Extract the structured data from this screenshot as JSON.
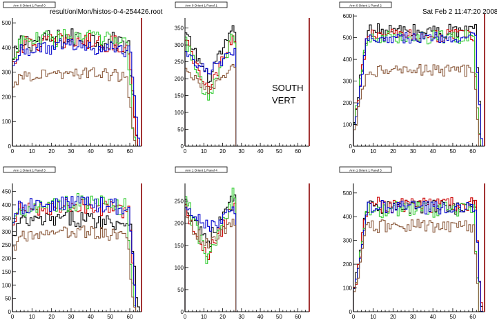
{
  "header": {
    "file_path": "result/onlMon/histos-0-4-254426.root",
    "timestamp": "Sat Feb  2 11:47:20 2008"
  },
  "annotation": {
    "line1": "SOUTH",
    "line2": "VERT"
  },
  "colors": {
    "black": "#000000",
    "red": "#cc0000",
    "green": "#33cc33",
    "blue": "#0000cc",
    "brown": "#8b5a3c",
    "axis_right": "#8b0000"
  },
  "chart_data": [
    {
      "type": "histogram",
      "title": "Arm 0 Orient 1 Panel 0",
      "xlim": [
        0,
        66
      ],
      "ylim": [
        0,
        520
      ],
      "xticks": [
        0,
        10,
        20,
        30,
        40,
        50,
        60
      ],
      "yticks": [
        0,
        100,
        200,
        300,
        400,
        500
      ],
      "series": [
        {
          "color": "black",
          "profile": "plateau",
          "level": 440,
          "noise": 40,
          "end": 63
        },
        {
          "color": "red",
          "profile": "plateau",
          "level": 430,
          "noise": 35,
          "end": 63
        },
        {
          "color": "green",
          "profile": "plateau",
          "level": 445,
          "noise": 40,
          "end": 62
        },
        {
          "color": "blue",
          "profile": "plateau",
          "level": 410,
          "noise": 30,
          "end": 64
        },
        {
          "color": "brown",
          "profile": "plateau",
          "level": 300,
          "noise": 25,
          "end": 62
        }
      ]
    },
    {
      "type": "histogram",
      "title": "Arm 0 Orient 1 Panel 1",
      "xlim": [
        0,
        66
      ],
      "ylim": [
        0,
        380
      ],
      "xticks": [
        0,
        10,
        20,
        30,
        40,
        50,
        60
      ],
      "yticks": [
        0,
        50,
        100,
        150,
        200,
        250,
        300,
        350
      ],
      "series": [
        {
          "color": "black",
          "profile": "vshape",
          "level": 340,
          "dip": 200,
          "noise": 20,
          "end": 26
        },
        {
          "color": "red",
          "profile": "vshape",
          "level": 320,
          "dip": 160,
          "noise": 20,
          "end": 26
        },
        {
          "color": "green",
          "profile": "vshape",
          "level": 330,
          "dip": 130,
          "noise": 25,
          "end": 26
        },
        {
          "color": "blue",
          "profile": "vshape",
          "level": 280,
          "dip": 220,
          "noise": 15,
          "end": 26
        },
        {
          "color": "brown",
          "profile": "vshape",
          "level": 230,
          "dip": 170,
          "noise": 15,
          "end": 26
        }
      ]
    },
    {
      "type": "histogram",
      "title": "Arm 0 Orient 1 Panel 2",
      "xlim": [
        0,
        66
      ],
      "ylim": [
        0,
        610
      ],
      "xticks": [
        0,
        10,
        20,
        30,
        40,
        50,
        60
      ],
      "yticks": [
        0,
        100,
        200,
        300,
        400,
        500,
        600
      ],
      "series": [
        {
          "color": "black",
          "profile": "rise",
          "level": 530,
          "noise": 35,
          "end": 64
        },
        {
          "color": "red",
          "profile": "rise",
          "level": 510,
          "noise": 30,
          "end": 63
        },
        {
          "color": "green",
          "profile": "rise",
          "level": 505,
          "noise": 35,
          "end": 63
        },
        {
          "color": "blue",
          "profile": "rise",
          "level": 500,
          "noise": 25,
          "end": 64
        },
        {
          "color": "brown",
          "profile": "rise",
          "level": 350,
          "noise": 30,
          "end": 63
        }
      ]
    },
    {
      "type": "histogram",
      "title": "Arm 1 Orient 1 Panel 3",
      "xlim": [
        0,
        66
      ],
      "ylim": [
        0,
        480
      ],
      "xticks": [
        0,
        10,
        20,
        30,
        40,
        50,
        60
      ],
      "yticks": [
        0,
        50,
        100,
        150,
        200,
        250,
        300,
        350,
        400,
        450
      ],
      "series": [
        {
          "color": "black",
          "profile": "plateau",
          "level": 350,
          "noise": 30,
          "end": 64
        },
        {
          "color": "red",
          "profile": "plateau",
          "level": 400,
          "noise": 30,
          "end": 63
        },
        {
          "color": "green",
          "profile": "plateau",
          "level": 410,
          "noise": 35,
          "end": 62
        },
        {
          "color": "blue",
          "profile": "plateau",
          "level": 410,
          "noise": 30,
          "end": 63
        },
        {
          "color": "brown",
          "profile": "plateau",
          "level": 300,
          "noise": 25,
          "end": 62
        }
      ]
    },
    {
      "type": "histogram",
      "title": "Arm 1 Orient 1 Panel 4",
      "xlim": [
        0,
        66
      ],
      "ylim": [
        0,
        290
      ],
      "xticks": [
        0,
        10,
        20,
        30,
        40,
        50,
        60
      ],
      "yticks": [
        0,
        50,
        100,
        150,
        200,
        250
      ],
      "series": [
        {
          "color": "black",
          "profile": "vshape",
          "level": 250,
          "dip": 160,
          "noise": 20,
          "end": 26
        },
        {
          "color": "red",
          "profile": "vshape",
          "level": 240,
          "dip": 130,
          "noise": 20,
          "end": 26
        },
        {
          "color": "green",
          "profile": "vshape",
          "level": 260,
          "dip": 115,
          "noise": 20,
          "end": 26
        },
        {
          "color": "blue",
          "profile": "vshape",
          "level": 230,
          "dip": 190,
          "noise": 15,
          "end": 26
        },
        {
          "color": "brown",
          "profile": "vshape",
          "level": 210,
          "dip": 150,
          "noise": 15,
          "end": 26
        }
      ]
    },
    {
      "type": "histogram",
      "title": "Arm 1 Orient 1 Panel 5",
      "xlim": [
        0,
        66
      ],
      "ylim": [
        0,
        540
      ],
      "xticks": [
        0,
        10,
        20,
        30,
        40,
        50,
        60
      ],
      "yticks": [
        0,
        100,
        200,
        300,
        400,
        500
      ],
      "series": [
        {
          "color": "black",
          "profile": "rise",
          "level": 440,
          "noise": 30,
          "end": 64
        },
        {
          "color": "red",
          "profile": "rise",
          "level": 450,
          "noise": 35,
          "end": 64
        },
        {
          "color": "green",
          "profile": "rise",
          "level": 430,
          "noise": 35,
          "end": 63
        },
        {
          "color": "blue",
          "profile": "rise",
          "level": 440,
          "noise": 30,
          "end": 64
        },
        {
          "color": "brown",
          "profile": "rise",
          "level": 360,
          "noise": 30,
          "end": 63
        }
      ]
    }
  ]
}
